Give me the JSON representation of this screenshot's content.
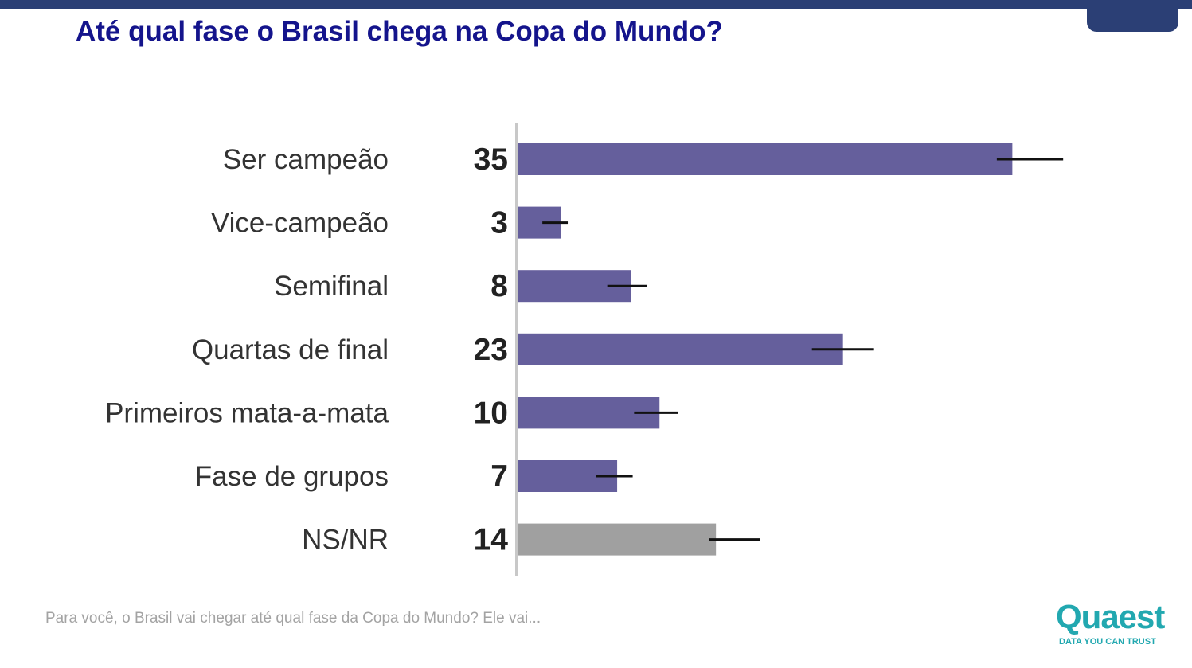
{
  "title": "Até qual fase o Brasil chega na Copa do Mundo?",
  "footnote": "Para você, o Brasil vai chegar até qual fase da Copa do Mundo? Ele vai...",
  "logo": {
    "wordmark": "Quaest",
    "tagline": "DATA YOU CAN TRUST",
    "color": "#22a8b0"
  },
  "colors": {
    "top_band": "#2b3f75",
    "title": "#14148c",
    "bar_main": "#655f9c",
    "bar_other": "#a0a0a0",
    "axis": "#c8c8c8",
    "category_label": "#333333",
    "value_label": "#222222",
    "error_bar": "#111111"
  },
  "chart_data": {
    "type": "bar",
    "orientation": "horizontal",
    "categories": [
      "Ser campeão",
      "Vice-campeão",
      "Semifinal",
      "Quartas de final",
      "Primeiros mata-a-mata",
      "Fase de grupos",
      "NS/NR"
    ],
    "values": [
      35,
      3,
      8,
      23,
      10,
      7,
      14
    ],
    "error_bars": [
      {
        "low": 33.9,
        "high": 38.6
      },
      {
        "low": 1.7,
        "high": 3.5
      },
      {
        "low": 6.3,
        "high": 9.1
      },
      {
        "low": 20.8,
        "high": 25.2
      },
      {
        "low": 8.2,
        "high": 11.3
      },
      {
        "low": 5.5,
        "high": 8.1
      },
      {
        "low": 13.5,
        "high": 17.1
      }
    ],
    "highlight": [
      "main",
      "main",
      "main",
      "main",
      "main",
      "main",
      "other"
    ],
    "xlim": [
      0,
      40
    ],
    "grid": false,
    "legend": "none"
  }
}
